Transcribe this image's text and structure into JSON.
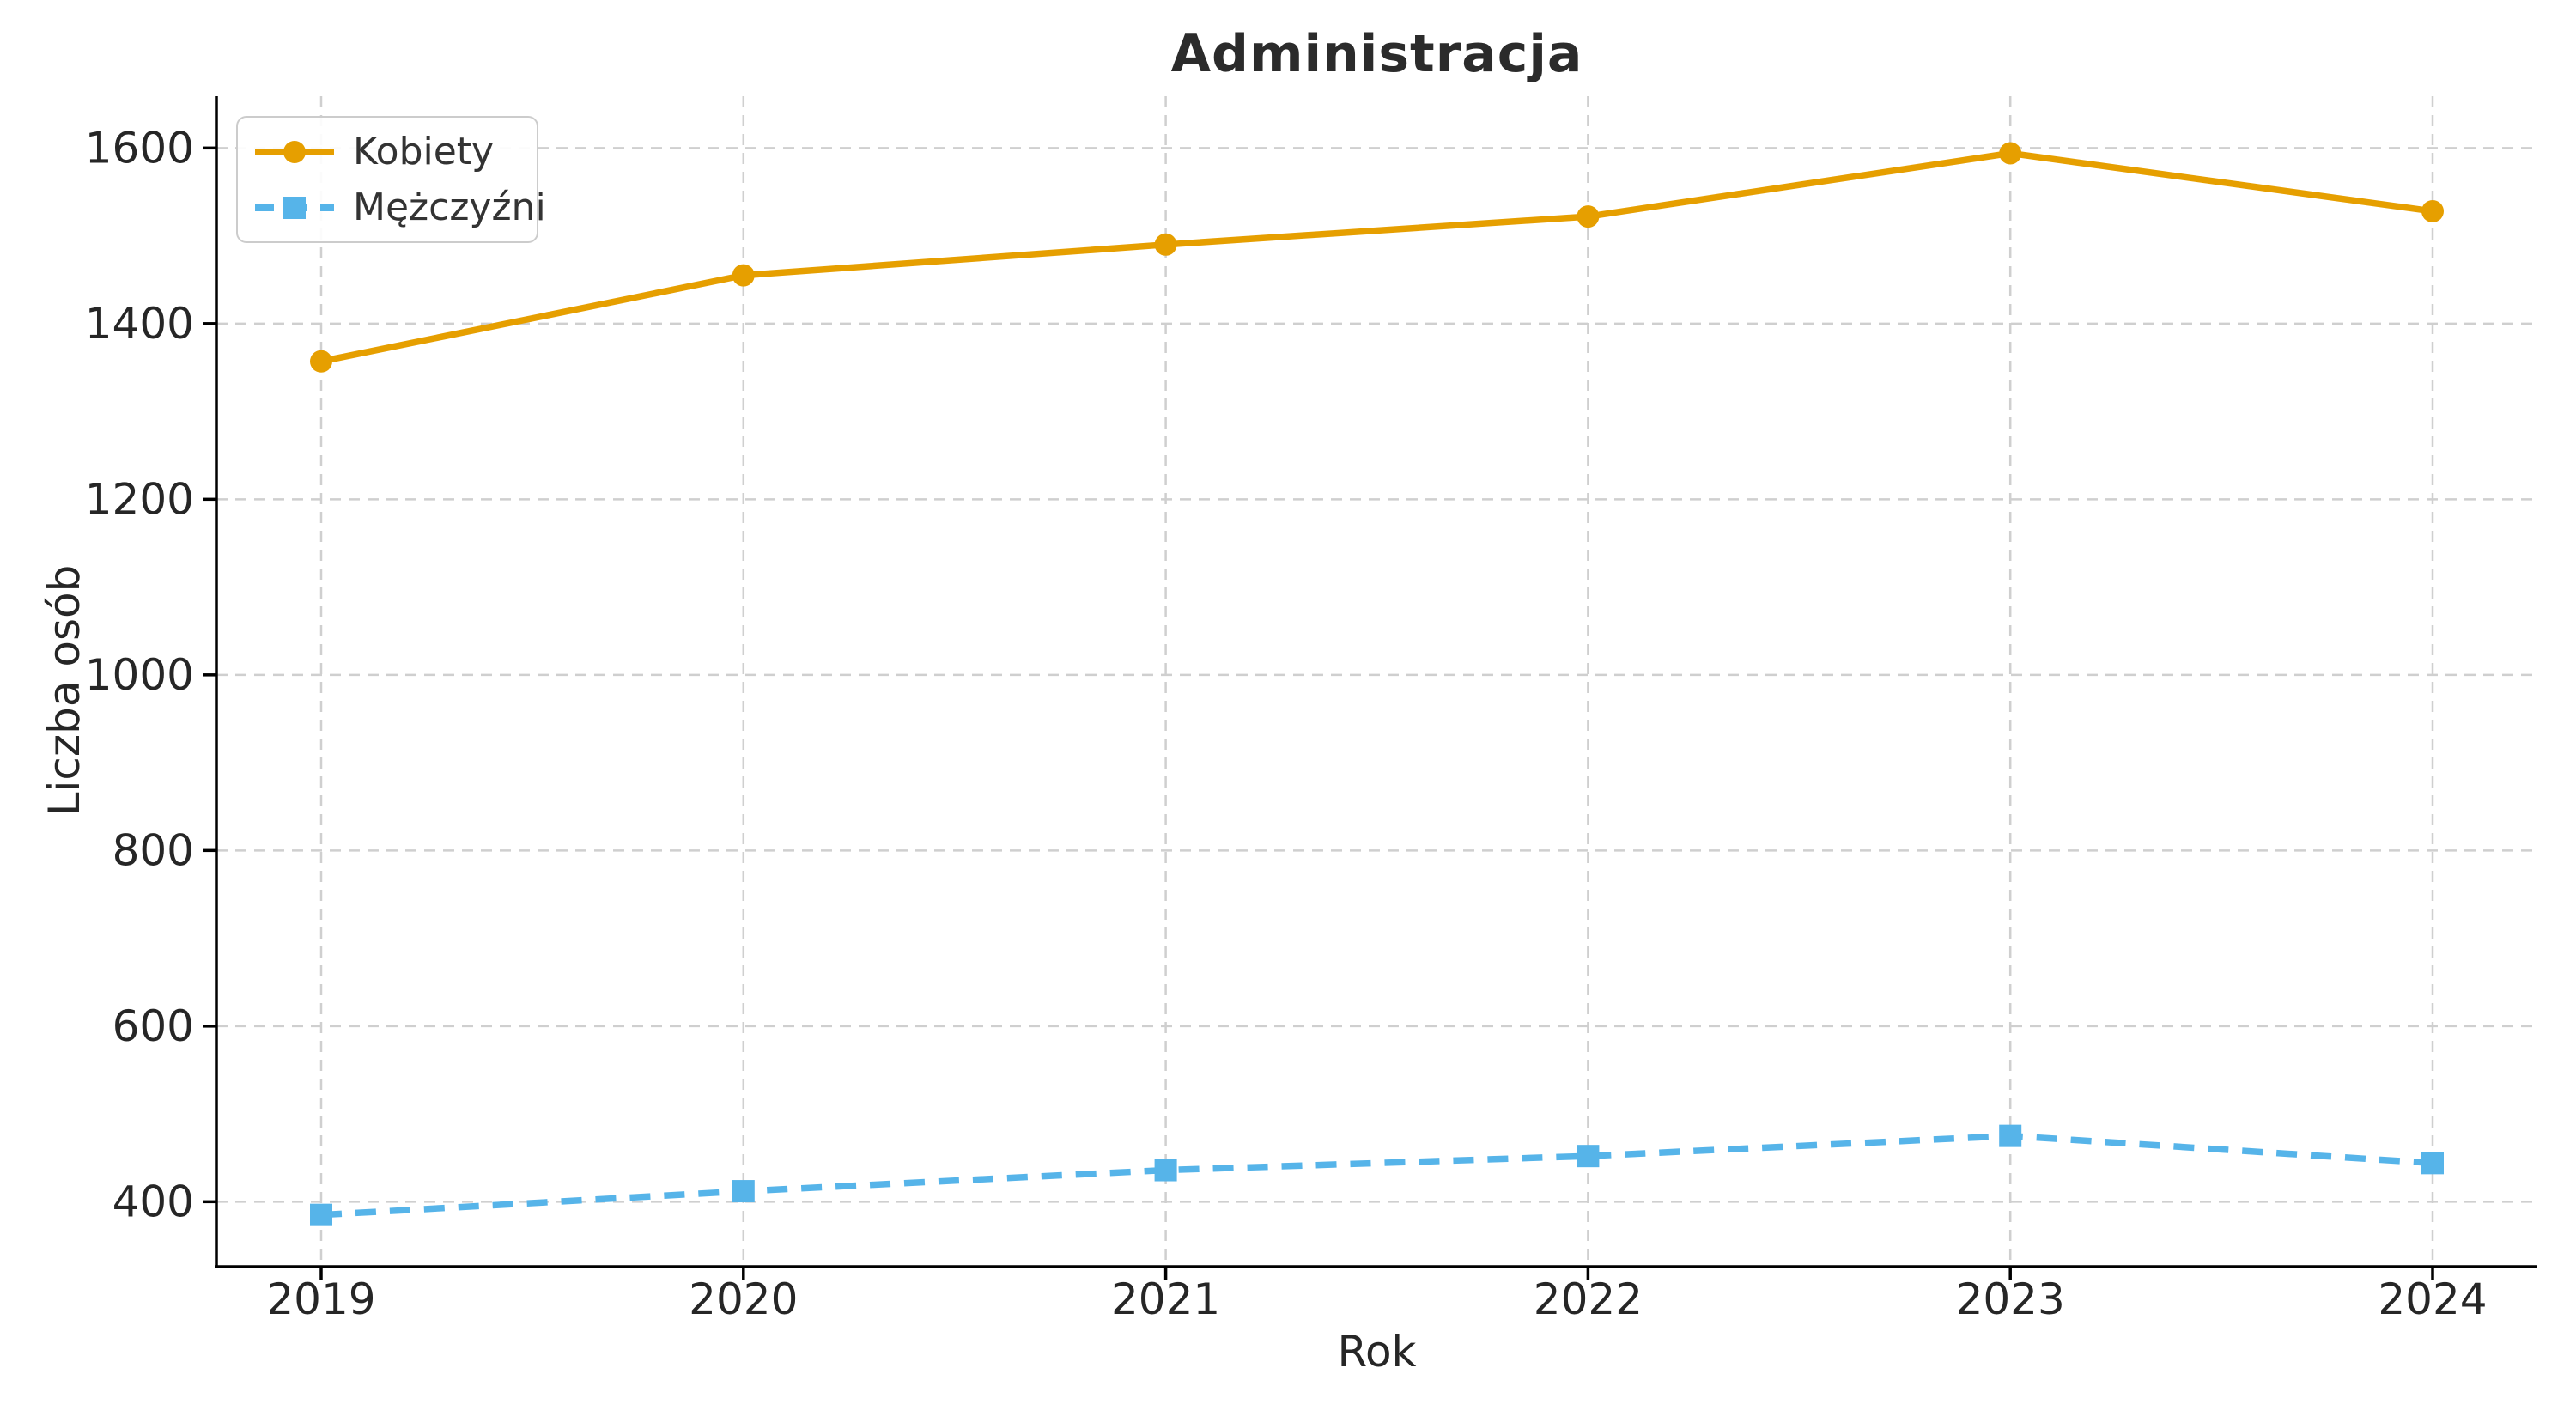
{
  "figure": {
    "title": "Administracja"
  },
  "chart_data": {
    "type": "line",
    "title": "Administracja",
    "xlabel": "Rok",
    "ylabel": "Liczba osób",
    "categories": [
      "2019",
      "2020",
      "2021",
      "2022",
      "2023",
      "2024"
    ],
    "series": [
      {
        "name": "Kobiety",
        "values": [
          1357,
          1455,
          1490,
          1522,
          1594,
          1528
        ],
        "color": "#E69F00",
        "line_style": "solid",
        "marker": "circle"
      },
      {
        "name": "Mężczyźni",
        "values": [
          385,
          412,
          436,
          452,
          475,
          444
        ],
        "color": "#56B4E9",
        "line_style": "dashed",
        "marker": "square"
      }
    ],
    "yticks": [
      400,
      600,
      800,
      1000,
      1200,
      1400,
      1600
    ],
    "ylim": [
      326,
      1659
    ],
    "grid": true,
    "grid_style": "dashed",
    "grid_color": "#cfcfcf",
    "legend_position": "upper left",
    "spine_color": "#000000",
    "tick_label_color": "#262626"
  }
}
